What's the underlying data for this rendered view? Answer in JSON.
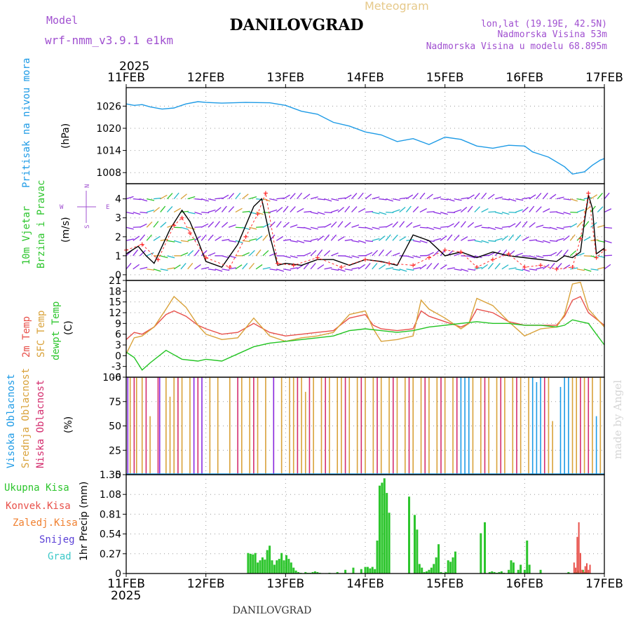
{
  "header": {
    "model_label": "Model",
    "model_value": "wrf-nmm_v3.9.1  e1km",
    "meteogram_label": "Meteogram",
    "station_title": "DANILOVGRAD",
    "coords": "lon,lat (19.19E, 42.5N)",
    "elevation": "Nadmorska Visina 53m",
    "model_elevation": "Nadmorska Visina u modelu 68.895m",
    "watermark": "made by Angel",
    "footer_title": "DANILOVGRAD",
    "year_top": "2025",
    "year_bottom": "2025"
  },
  "colors": {
    "pressure": "#1e9be6",
    "temp2m": "#e8504a",
    "sfctemp": "#d9a23a",
    "dewpt": "#22c422",
    "high_cloud": "#1e9be6",
    "mid_cloud": "#d9a23a",
    "low_cloud": "#d42d6e",
    "total_precip": "#2cc52c",
    "conv_precip": "#e8504a",
    "frozen_precip": "#f08030",
    "snow": "#5a3fd6",
    "hail": "#3cc8c8",
    "wind_purple": "#8a2be2",
    "wind_speed_line": "#000000",
    "wind_gust": "#ff3030"
  },
  "chart_data": {
    "x_ticks": [
      "11FEB",
      "12FEB",
      "13FEB",
      "14FEB",
      "15FEB",
      "16FEB",
      "17FEB"
    ],
    "panels": [
      {
        "id": "pressure",
        "type": "line",
        "title": "Pritisak na nivou mora",
        "ylabel": "(hPa)",
        "ylim": [
          1005,
          1031
        ],
        "yticks": [
          "1026",
          "1020",
          "1014",
          "1008"
        ],
        "series": [
          {
            "key": "slp",
            "color_key": "pressure",
            "x": [
              0,
              0.1,
              0.2,
              0.3,
              0.45,
              0.6,
              0.75,
              0.9,
              1.0,
              1.2,
              1.5,
              1.8,
              2.0,
              2.2,
              2.4,
              2.6,
              2.8,
              3.0,
              3.2,
              3.4,
              3.6,
              3.8,
              4.0,
              4.2,
              4.4,
              4.6,
              4.8,
              5.0,
              5.1,
              5.3,
              5.5,
              5.6,
              5.75,
              5.85,
              5.95,
              6.0
            ],
            "y": [
              1026.6,
              1026.2,
              1026.4,
              1025.8,
              1025.2,
              1025.5,
              1026.6,
              1027.2,
              1027.0,
              1026.8,
              1027.0,
              1026.9,
              1026.2,
              1024.6,
              1023.8,
              1021.6,
              1020.6,
              1019.0,
              1018.2,
              1016.4,
              1017.2,
              1015.6,
              1017.6,
              1017.0,
              1015.2,
              1014.6,
              1015.4,
              1015.2,
              1013.6,
              1012.2,
              1009.6,
              1007.6,
              1008.2,
              1010.0,
              1011.4,
              1011.8
            ]
          }
        ]
      },
      {
        "id": "wind",
        "type": "line",
        "title_line1": "10m Vjetar",
        "title_line2": "Brzina i Pravac",
        "ylabel": "(m/s)",
        "compass": "N",
        "compass_left": "W",
        "compass_right": "E",
        "compass_bottom": "S",
        "ylim": [
          -0.3,
          4.8
        ],
        "yticks": [
          "4",
          "3",
          "2",
          "1",
          "0"
        ],
        "barb_levels": [
          4.0,
          3.3,
          2.5,
          1.8,
          1.0,
          0.3
        ],
        "series": [
          {
            "key": "speed",
            "color_key": "wind_speed_line",
            "x": [
              0,
              0.15,
              0.25,
              0.35,
              0.45,
              0.55,
              0.7,
              0.8,
              0.9,
              1.0,
              1.2,
              1.4,
              1.5,
              1.6,
              1.7,
              1.8,
              1.9,
              2.0,
              2.2,
              2.4,
              2.6,
              2.8,
              3.0,
              3.2,
              3.4,
              3.6,
              3.8,
              4.0,
              4.2,
              4.4,
              4.6,
              4.8,
              5.0,
              5.2,
              5.4,
              5.5,
              5.6,
              5.7,
              5.75,
              5.8,
              5.85,
              5.9,
              6.0
            ],
            "y": [
              1.1,
              1.5,
              1.0,
              0.6,
              1.5,
              2.4,
              3.4,
              2.8,
              1.8,
              0.7,
              0.4,
              1.6,
              2.6,
              3.6,
              4.0,
              2.1,
              0.5,
              0.6,
              0.5,
              0.8,
              0.8,
              0.5,
              0.8,
              0.7,
              0.5,
              2.1,
              1.8,
              1.0,
              1.2,
              0.9,
              1.2,
              1.0,
              0.9,
              0.8,
              0.7,
              1.0,
              0.9,
              1.2,
              2.8,
              4.2,
              3.5,
              1.1,
              1.4
            ]
          },
          {
            "key": "gust",
            "color_key": "wind_gust",
            "x": [
              0,
              0.2,
              0.4,
              0.6,
              0.7,
              0.8,
              1.0,
              1.3,
              1.5,
              1.65,
              1.75,
              1.9,
              2.1,
              2.4,
              2.7,
              3.0,
              3.3,
              3.6,
              3.8,
              4.0,
              4.2,
              4.4,
              4.6,
              4.8,
              5.0,
              5.2,
              5.4,
              5.6,
              5.7,
              5.8,
              5.9,
              6.0
            ],
            "y": [
              1.3,
              1.6,
              0.8,
              2.6,
              3.0,
              2.2,
              0.9,
              0.4,
              2.0,
              3.2,
              4.3,
              0.6,
              0.5,
              0.9,
              0.4,
              0.8,
              0.6,
              0.5,
              0.9,
              1.3,
              1.2,
              0.4,
              0.8,
              1.1,
              0.4,
              0.5,
              0.3,
              0.4,
              1.9,
              4.3,
              0.9,
              1.3
            ]
          }
        ]
      },
      {
        "id": "temperature",
        "type": "line",
        "title_t2m": "2m Temp",
        "title_sfc": "SFC Temp",
        "title_dew": "dewpt Temp",
        "ylabel": "(C)",
        "ylim": [
          -6,
          21
        ],
        "yticks": [
          "21",
          "18",
          "15",
          "12",
          "9",
          "6",
          "3",
          "0",
          "-3",
          "-6"
        ],
        "series": [
          {
            "key": "t2m",
            "color_key": "temp2m",
            "x": [
              0,
              0.1,
              0.2,
              0.35,
              0.5,
              0.6,
              0.75,
              0.9,
              1.0,
              1.2,
              1.4,
              1.6,
              1.8,
              2.0,
              2.2,
              2.4,
              2.6,
              2.8,
              3.0,
              3.1,
              3.2,
              3.4,
              3.6,
              3.7,
              3.8,
              4.0,
              4.2,
              4.3,
              4.4,
              4.6,
              4.8,
              5.0,
              5.2,
              5.4,
              5.5,
              5.6,
              5.7,
              5.8,
              6.0
            ],
            "y": [
              4.5,
              6.5,
              6.0,
              8.0,
              11.5,
              12.5,
              11.0,
              8.5,
              7.5,
              6.0,
              6.5,
              9.0,
              6.5,
              5.5,
              6.0,
              6.5,
              7.0,
              10.5,
              11.5,
              8.5,
              7.5,
              7.0,
              7.5,
              12.5,
              11.0,
              9.5,
              8.0,
              9.0,
              13.0,
              12.0,
              9.5,
              8.5,
              8.5,
              8.5,
              11.0,
              15.5,
              16.5,
              12.0,
              8.5
            ]
          },
          {
            "key": "sfc",
            "color_key": "sfctemp",
            "x": [
              0,
              0.1,
              0.2,
              0.35,
              0.5,
              0.6,
              0.75,
              0.9,
              1.0,
              1.2,
              1.4,
              1.6,
              1.8,
              2.0,
              2.2,
              2.4,
              2.6,
              2.8,
              3.0,
              3.1,
              3.2,
              3.4,
              3.6,
              3.7,
              3.8,
              4.0,
              4.2,
              4.3,
              4.4,
              4.6,
              4.8,
              5.0,
              5.2,
              5.4,
              5.5,
              5.6,
              5.7,
              5.8,
              6.0
            ],
            "y": [
              0.5,
              5.0,
              5.5,
              8.0,
              13.0,
              16.5,
              13.5,
              8.5,
              6.0,
              4.5,
              5.0,
              10.5,
              5.5,
              4.0,
              5.0,
              5.5,
              6.5,
              11.5,
              12.5,
              7.5,
              4.0,
              4.5,
              5.5,
              15.5,
              13.0,
              10.5,
              7.5,
              9.0,
              16.0,
              14.0,
              9.5,
              5.5,
              7.5,
              8.0,
              11.5,
              20.0,
              20.5,
              13.0,
              8.0
            ]
          },
          {
            "key": "dew",
            "color_key": "dewpt",
            "x": [
              0,
              0.1,
              0.2,
              0.3,
              0.5,
              0.7,
              0.9,
              1.0,
              1.2,
              1.4,
              1.6,
              1.8,
              2.0,
              2.2,
              2.4,
              2.6,
              2.8,
              3.0,
              3.2,
              3.4,
              3.6,
              3.8,
              4.0,
              4.2,
              4.4,
              4.6,
              4.8,
              5.0,
              5.2,
              5.4,
              5.5,
              5.6,
              5.7,
              5.8,
              5.9,
              6.0
            ],
            "y": [
              1.0,
              -0.5,
              -4.0,
              -2.0,
              1.5,
              -1.0,
              -1.5,
              -1.0,
              -1.5,
              0.5,
              2.5,
              3.5,
              4.0,
              4.5,
              5.0,
              5.5,
              7.0,
              7.5,
              7.0,
              6.5,
              7.0,
              8.0,
              8.5,
              9.0,
              9.5,
              9.0,
              9.0,
              8.5,
              8.5,
              8.0,
              8.5,
              10.0,
              9.5,
              9.0,
              6.0,
              3.0
            ]
          }
        ]
      },
      {
        "id": "cloud",
        "type": "bar",
        "title_high": "Visoka Oblacnost",
        "title_mid": "Srednja Oblacnost",
        "title_low": "Niska Oblacnost",
        "ylabel": "(%)",
        "ylim": [
          0,
          100
        ],
        "yticks": [
          "100",
          "75",
          "50",
          "25",
          "0"
        ],
        "high_x": [
          4.2,
          4.25,
          4.3,
          5.1,
          5.15,
          5.2,
          5.45,
          5.5,
          5.55,
          5.9
        ],
        "high_y": [
          100,
          100,
          100,
          100,
          95,
          100,
          90,
          100,
          100,
          60
        ],
        "mid_x": [
          0.05,
          0.13,
          0.2,
          0.3,
          0.5,
          0.55,
          0.6,
          0.7,
          0.8,
          1.05,
          1.15,
          1.3,
          1.45,
          1.55,
          1.65,
          1.75,
          1.85,
          1.95,
          2.05,
          2.1,
          2.2,
          2.25,
          2.35,
          2.45,
          2.55,
          2.65,
          2.7,
          2.8,
          2.9,
          3.0,
          3.1,
          3.2,
          3.3,
          3.4,
          3.5,
          3.6,
          3.7,
          3.8,
          3.9,
          4.0,
          4.1,
          4.35,
          4.45,
          4.55,
          4.65,
          4.75,
          4.85,
          4.95,
          5.05,
          5.3,
          5.35,
          5.6,
          5.65,
          5.75,
          5.85,
          5.95
        ],
        "mid_y": [
          100,
          100,
          100,
          60,
          100,
          80,
          100,
          100,
          100,
          100,
          100,
          100,
          100,
          100,
          100,
          100,
          100,
          100,
          100,
          100,
          100,
          85,
          100,
          100,
          100,
          100,
          100,
          100,
          100,
          100,
          100,
          100,
          100,
          100,
          100,
          100,
          100,
          100,
          100,
          100,
          100,
          100,
          100,
          100,
          100,
          100,
          100,
          100,
          100,
          100,
          55,
          100,
          100,
          100,
          100,
          100
        ],
        "low_x": [
          0.1,
          0.25,
          0.4,
          0.65,
          0.9,
          1.4,
          1.6,
          2.15,
          2.3,
          2.5,
          2.75,
          2.95,
          3.15,
          3.35,
          3.55,
          3.75,
          3.95,
          4.15,
          4.5,
          4.7,
          4.9,
          5.25,
          5.7,
          5.8
        ],
        "low_y": [
          100,
          100,
          100,
          100,
          100,
          100,
          100,
          100,
          100,
          100,
          100,
          100,
          100,
          100,
          100,
          100,
          100,
          100,
          100,
          100,
          100,
          100,
          100,
          100
        ],
        "purple_x": [
          0.02,
          0.42,
          0.85,
          0.95,
          1.85
        ],
        "purple_y": [
          100,
          100,
          100,
          100,
          100
        ]
      },
      {
        "id": "precip",
        "type": "bar",
        "title_total": "Ukupna Kisa",
        "title_conv": "Konvek.Kisa",
        "title_frozen": "Zaledj.Kisa",
        "title_snow": "Snijeg",
        "title_hail": "Grad",
        "ylabel": "1hr Precip (mm)",
        "ylim": [
          0,
          1.35
        ],
        "yticks": [
          "1.35",
          "1.08",
          "0.81",
          "0.54",
          "0.27",
          "0"
        ],
        "total_x": [
          1.53,
          1.56,
          1.59,
          1.62,
          1.65,
          1.68,
          1.71,
          1.74,
          1.77,
          1.8,
          1.83,
          1.86,
          1.89,
          1.92,
          1.95,
          1.98,
          2.01,
          2.04,
          2.07,
          2.1,
          2.13,
          2.16,
          2.19,
          2.22,
          2.25,
          2.28,
          2.31,
          2.34,
          2.37,
          2.4,
          2.43,
          2.55,
          2.65,
          2.75,
          2.85,
          2.95,
          3.0,
          3.03,
          3.06,
          3.09,
          3.12,
          3.15,
          3.18,
          3.21,
          3.24,
          3.27,
          3.3,
          3.55,
          3.62,
          3.65,
          3.68,
          3.71,
          3.74,
          3.77,
          3.8,
          3.83,
          3.86,
          3.89,
          3.92,
          3.95,
          3.98,
          4.01,
          4.04,
          4.07,
          4.1,
          4.13,
          4.45,
          4.5,
          4.53,
          4.56,
          4.59,
          4.62,
          4.65,
          4.68,
          4.71,
          4.74,
          4.77,
          4.8,
          4.83,
          4.86,
          4.92,
          4.95,
          5.0,
          5.03,
          5.06,
          5.09,
          5.2,
          5.3,
          5.55,
          5.58,
          5.61,
          5.64,
          5.67,
          5.7,
          5.73,
          5.76,
          5.79,
          5.82,
          5.85
        ],
        "total_y": [
          0.28,
          0.27,
          0.26,
          0.28,
          0.15,
          0.18,
          0.22,
          0.19,
          0.32,
          0.38,
          0.18,
          0.12,
          0.18,
          0.2,
          0.28,
          0.18,
          0.25,
          0.2,
          0.15,
          0.08,
          0.04,
          0.02,
          0.01,
          0.0,
          0.02,
          0.01,
          0.01,
          0.02,
          0.03,
          0.02,
          0.01,
          0.01,
          0.02,
          0.05,
          0.08,
          0.06,
          0.09,
          0.09,
          0.07,
          0.09,
          0.06,
          0.45,
          1.2,
          1.24,
          1.3,
          1.1,
          0.83,
          1.05,
          0.8,
          0.6,
          0.13,
          0.08,
          0.02,
          0.03,
          0.05,
          0.08,
          0.13,
          0.22,
          0.4,
          0.02,
          0.01,
          0.02,
          0.18,
          0.16,
          0.22,
          0.3,
          0.55,
          0.7,
          0.0,
          0.02,
          0.03,
          0.02,
          0.01,
          0.02,
          0.03,
          0.01,
          0.0,
          0.05,
          0.18,
          0.15,
          0.05,
          0.12,
          0.05,
          0.45,
          0.12,
          0.0,
          0.05,
          0.0,
          0.02,
          0.0,
          0.0,
          0.02,
          0.04,
          0.0,
          0.05,
          0.02,
          0.01,
          0.0,
          0.0
        ],
        "conv_x": [
          5.62,
          5.64,
          5.66,
          5.68,
          5.7,
          5.72,
          5.74,
          5.76,
          5.78,
          5.8,
          5.82
        ],
        "conv_y": [
          0.15,
          0.08,
          0.5,
          0.7,
          0.28,
          0.05,
          0.02,
          0.1,
          0.14,
          0.05,
          0.12
        ]
      }
    ]
  }
}
